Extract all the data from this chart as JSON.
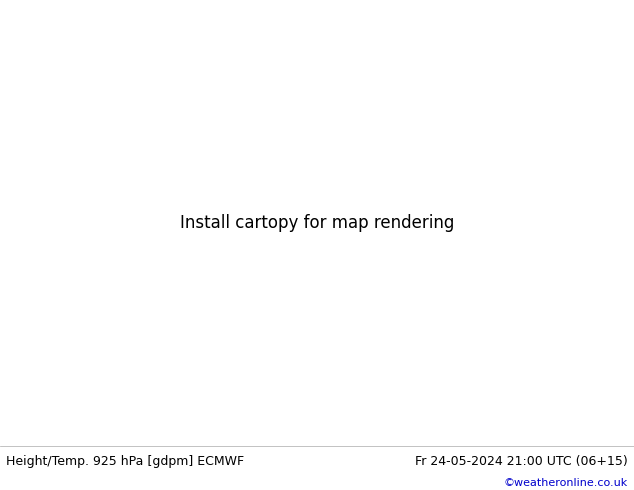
{
  "title_left": "Height/Temp. 925 hPa [gdpm] ECMWF",
  "title_right": "Fr 24-05-2024 21:00 UTC (06+15)",
  "copyright": "©weatheronline.co.uk",
  "land_color": "#aad060",
  "highland_color": "#c8c8c8",
  "water_color": "#d0d0e8",
  "border_color": "#808080",
  "coast_color": "#000000",
  "bottom_bar_color": "#ffffff",
  "copyright_color": "#0000cc",
  "figsize": [
    6.34,
    4.9
  ],
  "dpi": 100,
  "title_fontsize": 9.0,
  "copyright_fontsize": 8.0,
  "extent": [
    20,
    110,
    5,
    55
  ]
}
